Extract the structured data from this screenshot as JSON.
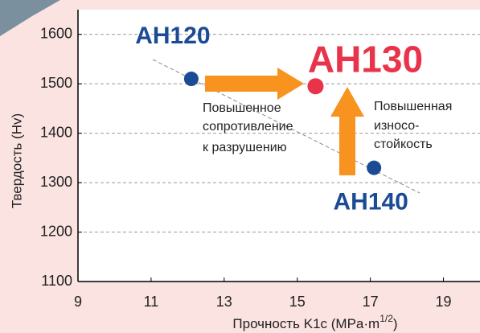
{
  "chart_data": {
    "type": "scatter",
    "x_label": "Прочность  K1c (MPa·m",
    "x_label_sup": "1/2",
    "x_label_end": ")",
    "y_label": "Твердость (Hv)",
    "xlim": [
      9,
      20
    ],
    "xticks": [
      9,
      11,
      13,
      15,
      17,
      19
    ],
    "ylim": [
      1100,
      1650
    ],
    "yticks": [
      1100,
      1200,
      1300,
      1400,
      1500,
      1600
    ],
    "grid": true,
    "series": [
      {
        "name": "AH120",
        "color": "#1b4b94",
        "x": [
          12.1
        ],
        "values": [
          1510
        ]
      },
      {
        "name": "AH130",
        "color": "#e8334a",
        "x": [
          15.5
        ],
        "values": [
          1495
        ]
      },
      {
        "name": "AH140",
        "color": "#1b4b94",
        "x": [
          17.1
        ],
        "values": [
          1330
        ]
      }
    ],
    "annotations": [
      [
        "Повышенное",
        "сопротивление",
        "к разрушению"
      ],
      [
        "Повышенная",
        "износо-",
        "стойкость"
      ]
    ]
  }
}
